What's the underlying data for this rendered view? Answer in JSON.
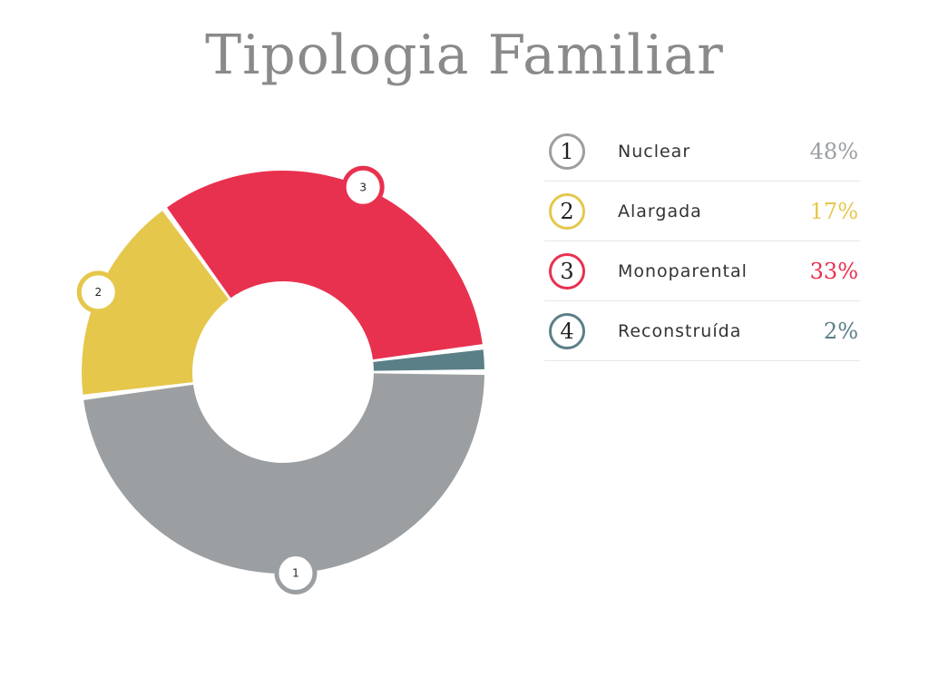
{
  "chart_data": {
    "type": "pie",
    "title": "Tipologia Familiar",
    "style": "donut",
    "slices": [
      {
        "id": "1",
        "label": "Nuclear",
        "value": 48,
        "value_label": "48%",
        "color": "#9b9fa2"
      },
      {
        "id": "2",
        "label": "Alargada",
        "value": 17,
        "value_label": "17%",
        "color": "#e5c74b"
      },
      {
        "id": "3",
        "label": "Monoparental",
        "value": 33,
        "value_label": "33%",
        "color": "#e8314f"
      },
      {
        "id": "4",
        "label": "Reconstruída",
        "value": 2,
        "value_label": "2%",
        "color": "#5b7f87"
      }
    ],
    "legend_position": "right"
  }
}
